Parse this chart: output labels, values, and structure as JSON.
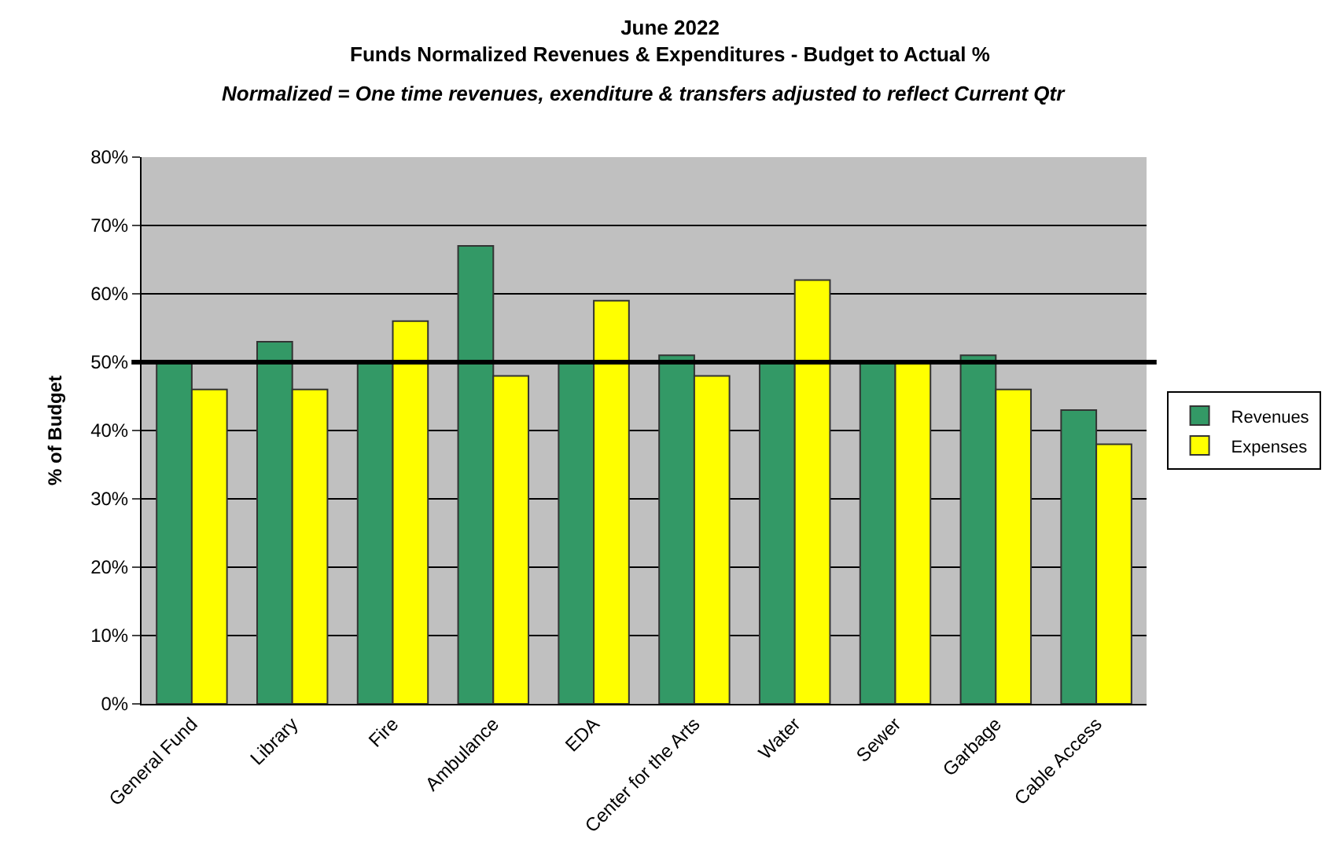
{
  "chart_data": {
    "type": "bar",
    "title": "June 2022",
    "subtitle": "Funds Normalized Revenues & Expenditures - Budget to Actual %",
    "annotations": [
      "Normalized = One time revenues, exenditure & transfers adjusted to reflect Current Qtr"
    ],
    "ylabel": "% of Budget",
    "categories": [
      "General Fund",
      "Library",
      "Fire",
      "Ambulance",
      "EDA",
      "Center for the Arts",
      "Water",
      "Sewer",
      "Garbage",
      "Cable Access"
    ],
    "series": [
      {
        "name": "Revenues",
        "color": "#339966",
        "values": [
          50,
          53,
          50,
          67,
          50,
          51,
          50,
          50,
          51,
          43
        ]
      },
      {
        "name": "Expenses",
        "color": "#ffff00",
        "values": [
          46,
          46,
          56,
          48,
          59,
          48,
          62,
          50,
          46,
          38
        ]
      }
    ],
    "ylim": [
      0,
      80
    ],
    "yticks": [
      {
        "value": 0,
        "label": "0%"
      },
      {
        "value": 10,
        "label": "10%"
      },
      {
        "value": 20,
        "label": "20%"
      },
      {
        "value": 30,
        "label": "30%"
      },
      {
        "value": 40,
        "label": "40%"
      },
      {
        "value": 50,
        "label": "50%"
      },
      {
        "value": 60,
        "label": "60%"
      },
      {
        "value": 70,
        "label": "70%"
      },
      {
        "value": 80,
        "label": "80%"
      }
    ],
    "ref_lines": [
      {
        "axis": "y",
        "value": 50,
        "label": null,
        "color": "#000000"
      }
    ],
    "grid": "y",
    "legend": "right"
  }
}
